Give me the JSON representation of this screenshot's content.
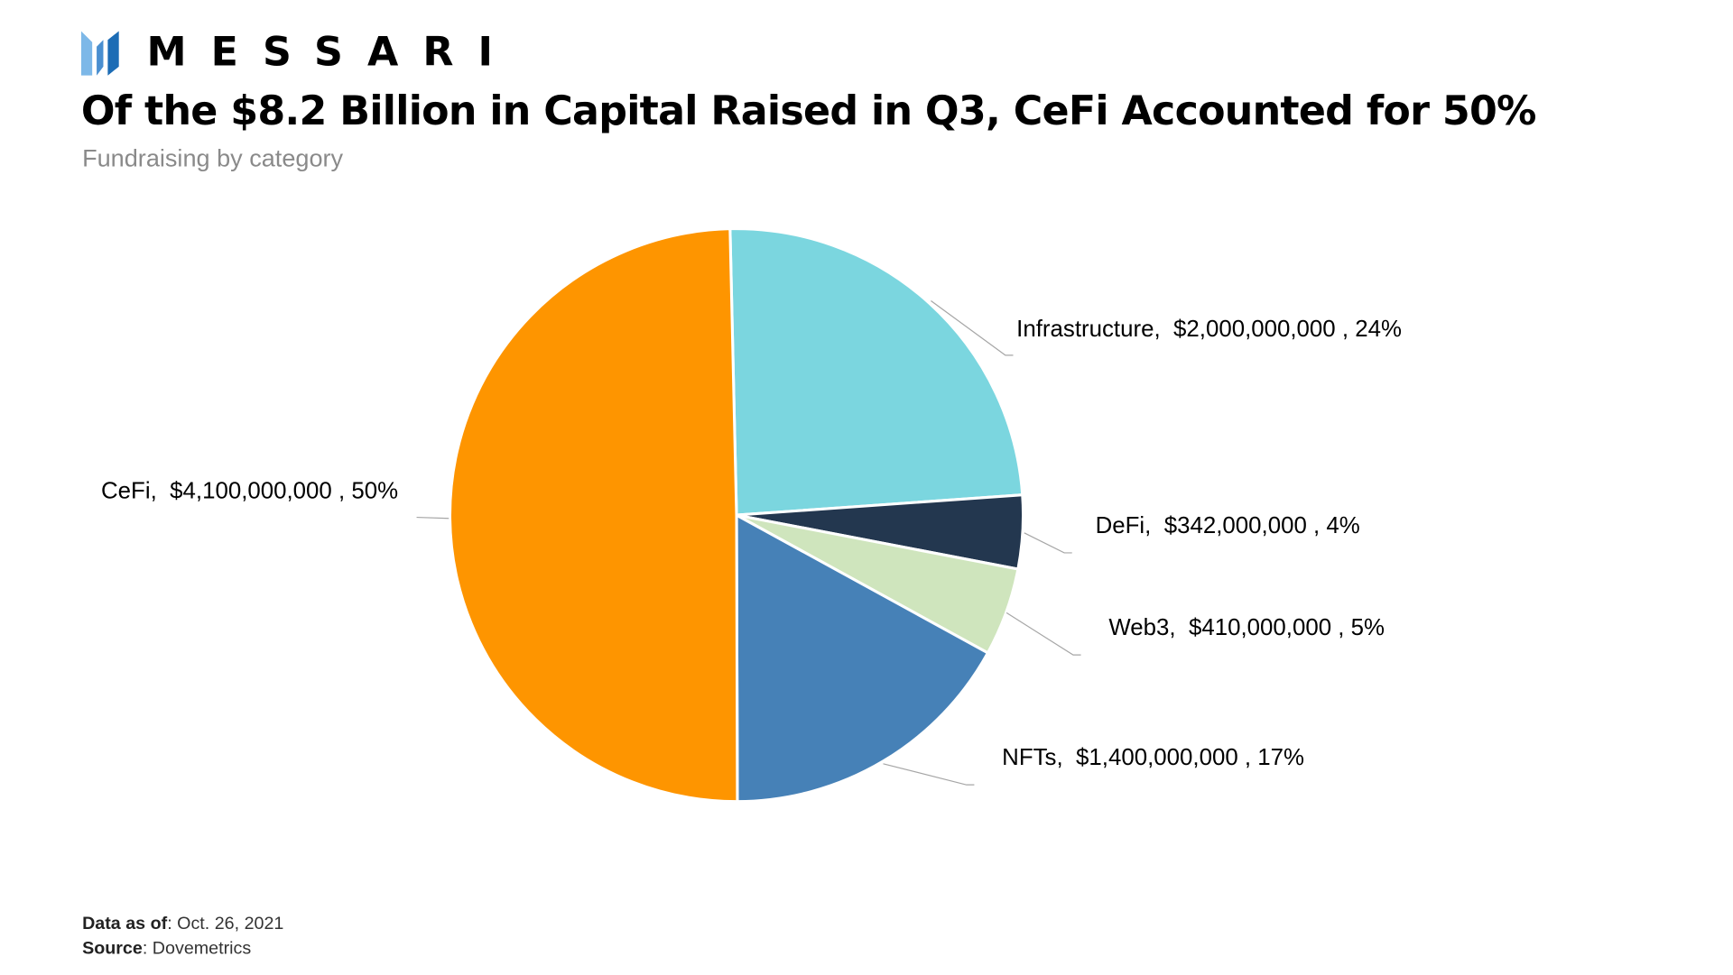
{
  "brand": {
    "name": "MESSARI",
    "logo_colors": [
      "#7db8e8",
      "#4a8fd0",
      "#1c6cb5"
    ]
  },
  "title": "Of the $8.2 Billion in Capital Raised in Q3, CeFi Accounted for 50%",
  "subtitle": "Fundraising by category",
  "footer": {
    "data_as_of_label": "Data as of",
    "data_as_of_value": ": Oct. 26, 2021",
    "source_label": "Source",
    "source_value": ": Dovemetrics"
  },
  "chart_data": {
    "type": "pie",
    "title": "Of the $8.2 Billion in Capital Raised in Q3, CeFi Accounted for 50%",
    "subtitle": "Fundraising by category",
    "legend": "none (data labels)",
    "slices": [
      {
        "name": "Infrastructure",
        "value": 2000000000,
        "value_label": "$2,000,000,000",
        "percent_label": "24%",
        "color": "#7bd6df"
      },
      {
        "name": "DeFi",
        "value": 342000000,
        "value_label": "$342,000,000",
        "percent_label": "4%",
        "color": "#23374f"
      },
      {
        "name": "Web3",
        "value": 410000000,
        "value_label": "$410,000,000",
        "percent_label": "5%",
        "color": "#cfe5bd"
      },
      {
        "name": "NFTs",
        "value": 1400000000,
        "value_label": "$1,400,000,000",
        "percent_label": "17%",
        "color": "#4681b7"
      },
      {
        "name": "CeFi",
        "value": 4100000000,
        "value_label": "$4,100,000,000",
        "percent_label": "50%",
        "color": "#fe9500"
      }
    ]
  }
}
